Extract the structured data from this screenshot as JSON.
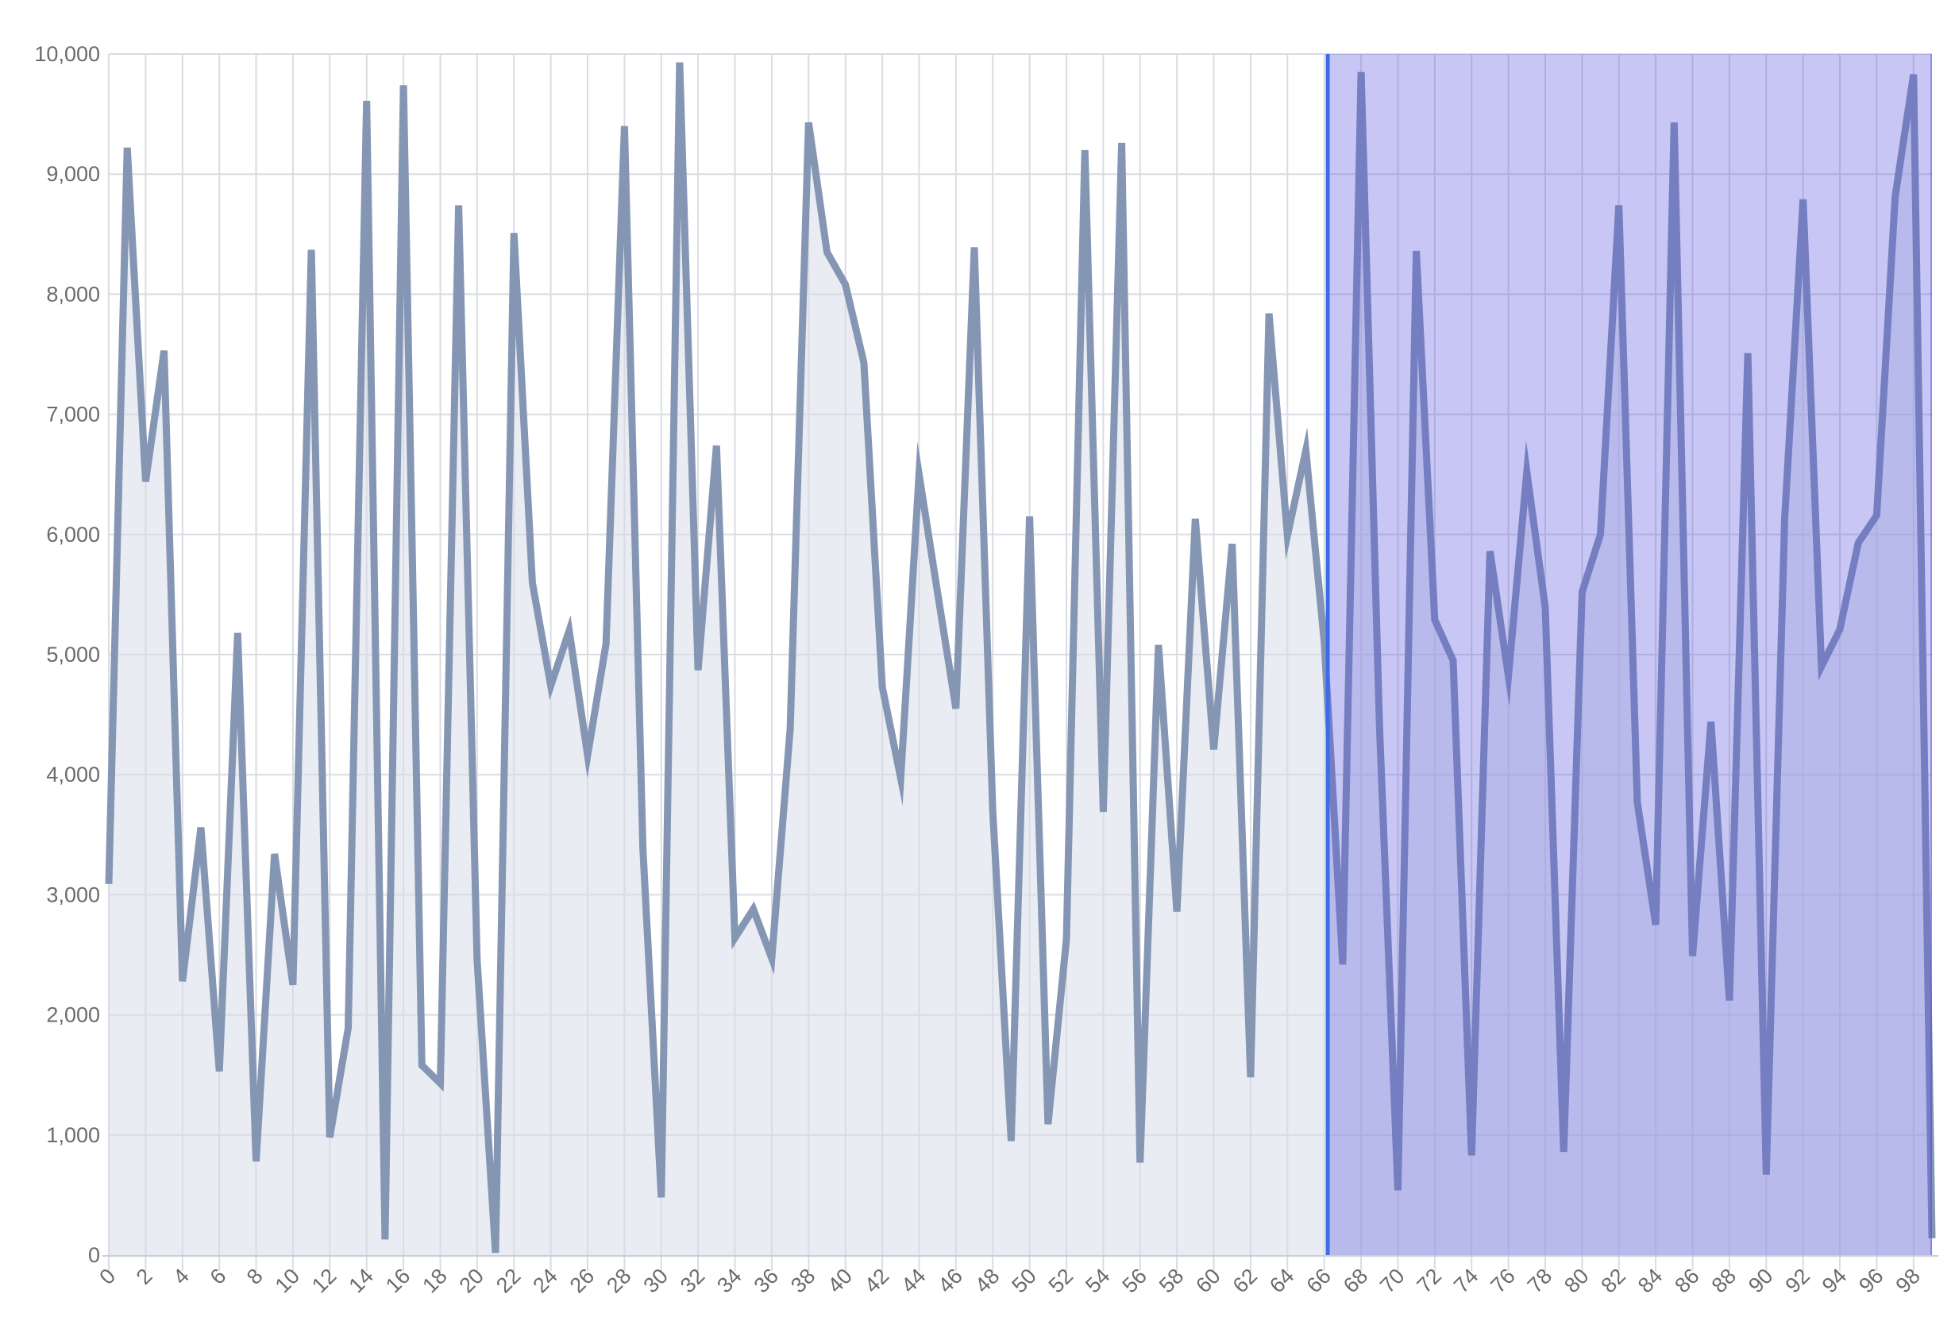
{
  "chart_data": {
    "type": "area",
    "title": "",
    "xlabel": "",
    "ylabel": "",
    "x": [
      0,
      1,
      2,
      3,
      4,
      5,
      6,
      7,
      8,
      9,
      10,
      11,
      12,
      13,
      14,
      15,
      16,
      17,
      18,
      19,
      20,
      21,
      22,
      23,
      24,
      25,
      26,
      27,
      28,
      29,
      30,
      31,
      32,
      33,
      34,
      35,
      36,
      37,
      38,
      39,
      40,
      41,
      42,
      43,
      44,
      45,
      46,
      47,
      48,
      49,
      50,
      51,
      52,
      53,
      54,
      55,
      56,
      57,
      58,
      59,
      60,
      61,
      62,
      63,
      64,
      65,
      66,
      67,
      68,
      69,
      70,
      71,
      72,
      73,
      74,
      75,
      76,
      77,
      78,
      79,
      80,
      81,
      82,
      83,
      84,
      85,
      86,
      87,
      88,
      89,
      90,
      91,
      92,
      93,
      94,
      95,
      96,
      97,
      98,
      99
    ],
    "values": [
      3090,
      9220,
      6440,
      7530,
      2280,
      3560,
      1530,
      5180,
      780,
      3340,
      2250,
      8370,
      980,
      1890,
      9610,
      130,
      9740,
      1580,
      1430,
      8740,
      2460,
      20,
      8510,
      5600,
      4740,
      5200,
      4160,
      5090,
      9400,
      3390,
      480,
      9930,
      4870,
      6740,
      2640,
      2880,
      2470,
      4380,
      9430,
      8350,
      8080,
      7430,
      4730,
      3970,
      6500,
      5520,
      4550,
      8390,
      3700,
      950,
      6150,
      1090,
      2630,
      9200,
      3690,
      9260,
      770,
      5080,
      2860,
      6130,
      4210,
      5920,
      1480,
      7840,
      5990,
      6700,
      5100,
      2420,
      9850,
      4410,
      540,
      8360,
      5290,
      4950,
      830,
      5860,
      4820,
      6520,
      5390,
      860,
      5520,
      6000,
      8740,
      3770,
      2750,
      9430,
      2490,
      4440,
      2120,
      7510,
      670,
      6130,
      8790,
      4900,
      5210,
      5930,
      6160,
      8810,
      9830,
      140
    ],
    "ylim": [
      0,
      10000
    ],
    "ytick_step": 1000,
    "xtick_step": 2,
    "grid": true,
    "legend": "none",
    "y_tick_labels": [
      "0",
      "1,000",
      "2,000",
      "3,000",
      "4,000",
      "5,000",
      "6,000",
      "7,000",
      "8,000",
      "9,000",
      "10,000"
    ],
    "x_tick_labels": [
      "0",
      "2",
      "4",
      "6",
      "8",
      "10",
      "12",
      "14",
      "16",
      "18",
      "20",
      "22",
      "24",
      "26",
      "28",
      "30",
      "32",
      "34",
      "36",
      "38",
      "40",
      "42",
      "44",
      "46",
      "48",
      "50",
      "52",
      "54",
      "56",
      "58",
      "60",
      "62",
      "64",
      "66",
      "68",
      "70",
      "72",
      "74",
      "76",
      "78",
      "80",
      "82",
      "84",
      "86",
      "88",
      "90",
      "92",
      "94",
      "96",
      "98"
    ],
    "selection": {
      "x_start": 66.3,
      "x_end": 99,
      "description": "highlighted selected range overlay on right portion of chart"
    },
    "colors": {
      "line": "#8596b4",
      "area_fill": "#e9edf3",
      "gridline": "#d9dce2",
      "axis_line": "#c9cdd4",
      "selection_fill": "rgba(84, 78, 221, 0.32)",
      "selection_border": "#3a6cec",
      "selection_edge": "rgba(84, 78, 221, 0.5)",
      "label_color": "#6b6b6b",
      "background": "#ffffff"
    }
  }
}
